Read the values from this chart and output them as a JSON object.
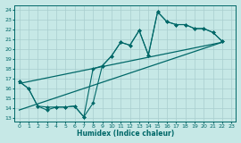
{
  "bg_color": "#c6e8e6",
  "grid_color": "#a8cece",
  "line_color": "#006868",
  "xlabel": "Humidex (Indice chaleur)",
  "ylabel_ticks": [
    13,
    14,
    15,
    16,
    17,
    18,
    19,
    20,
    21,
    22,
    23,
    24
  ],
  "xlabel_ticks": [
    0,
    1,
    2,
    3,
    4,
    5,
    6,
    7,
    8,
    9,
    10,
    11,
    12,
    13,
    14,
    15,
    16,
    17,
    18,
    19,
    20,
    21,
    22,
    23
  ],
  "ylim": [
    12.6,
    24.5
  ],
  "xlim": [
    -0.5,
    23.5
  ],
  "line1_y": [
    16.7,
    16.0,
    14.2,
    13.8,
    14.1,
    14.1,
    14.2,
    13.1,
    14.5,
    18.3,
    19.3,
    20.7,
    20.4,
    21.9,
    19.4,
    23.8,
    22.8,
    22.5,
    22.5,
    22.1,
    22.1,
    21.7,
    20.8,
    null
  ],
  "line2_y": [
    16.7,
    16.0,
    14.2,
    14.1,
    14.1,
    14.1,
    14.2,
    13.1,
    18.0,
    18.3,
    19.3,
    20.7,
    20.4,
    21.9,
    19.4,
    23.8,
    22.8,
    22.5,
    22.5,
    22.1,
    22.1,
    21.7,
    20.8,
    null
  ],
  "line3_x": [
    0,
    22
  ],
  "line3_y": [
    16.5,
    20.7
  ],
  "line4_x": [
    0,
    22
  ],
  "line4_y": [
    13.8,
    20.7
  ]
}
